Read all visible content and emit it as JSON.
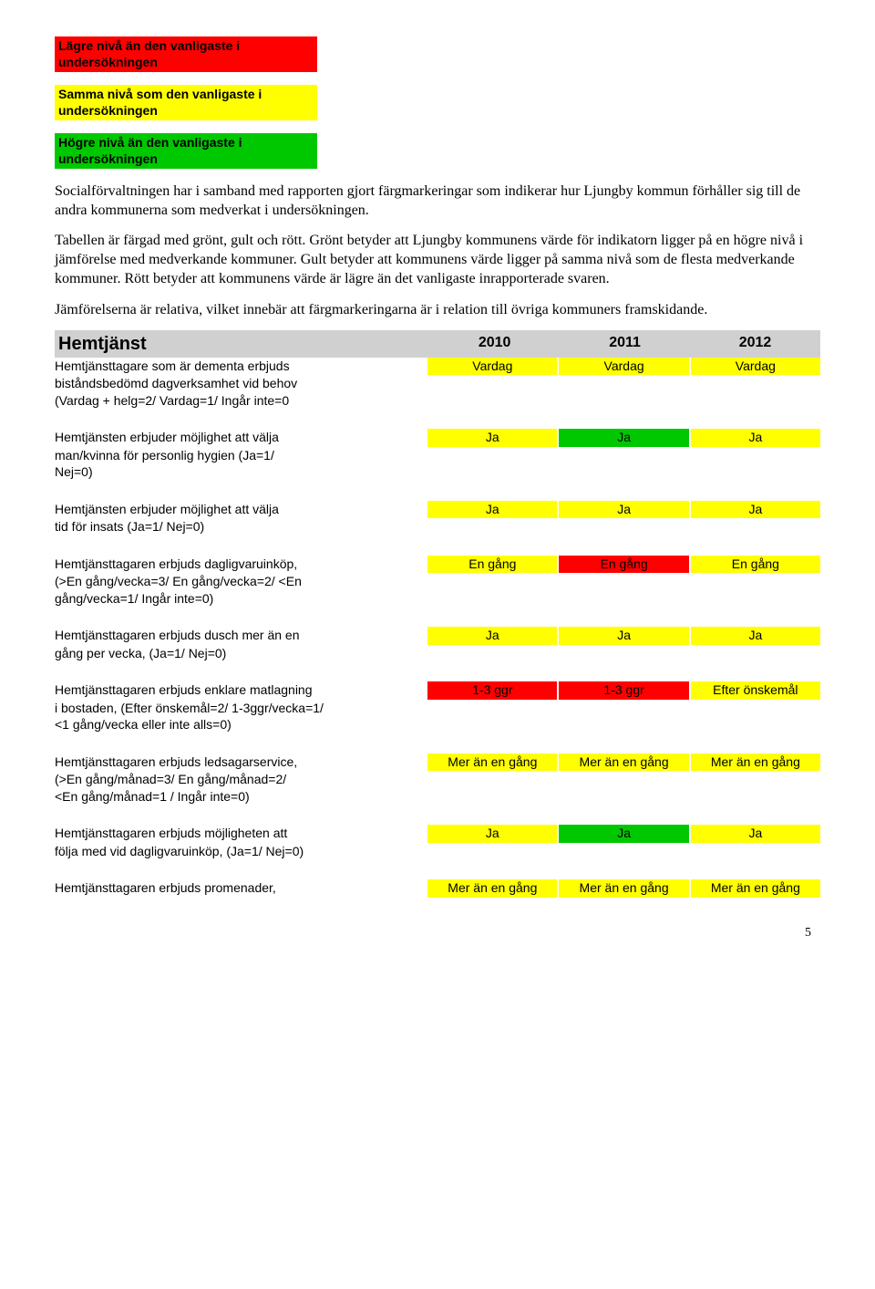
{
  "legend": {
    "low": "Lägre nivå än den vanligaste i undersökningen",
    "same": "Samma nivå som den vanligaste i undersökningen",
    "high": "Högre nivå än den vanligaste i undersökningen"
  },
  "paragraphs": {
    "p1": "Socialförvaltningen har i samband med rapporten gjort färgmarkeringar som indikerar hur Ljungby kommun förhåller sig till de andra kommunerna som medverkat i undersökningen.",
    "p2": "Tabellen är färgad med grönt, gult och rött. Grönt betyder att Ljungby kommunens värde för indikatorn ligger på en högre nivå i jämförelse med medverkande kommuner. Gult betyder att kommunens värde ligger på samma nivå som de flesta medverkande kommuner. Rött betyder att kommunens värde är lägre än det vanligaste inrapporterade svaren.",
    "p3": "Jämförelserna är relativa, vilket innebär att färgmarkeringarna är i relation till övriga kommuners framskidande."
  },
  "header": {
    "title": "Hemtjänst",
    "years": [
      "2010",
      "2011",
      "2012"
    ]
  },
  "rows": [
    {
      "label_lines": [
        "Hemtjänsttagare som är dementa erbjuds",
        "biståndsbedömd dagverksamhet vid behov",
        "(Vardag + helg=2/ Vardag=1/ Ingår inte=0"
      ],
      "values": [
        "Vardag",
        "Vardag",
        "Vardag"
      ],
      "colors": [
        "bg-yellow",
        "bg-yellow",
        "bg-yellow"
      ]
    },
    {
      "label_lines": [
        "Hemtjänsten erbjuder möjlighet att välja",
        "man/kvinna för personlig hygien (Ja=1/",
        "Nej=0)"
      ],
      "values": [
        "Ja",
        "Ja",
        "Ja"
      ],
      "colors": [
        "bg-yellow",
        "bg-green",
        "bg-yellow"
      ]
    },
    {
      "label_lines": [
        "Hemtjänsten erbjuder möjlighet att välja",
        "tid för insats (Ja=1/ Nej=0)"
      ],
      "values": [
        "Ja",
        "Ja",
        "Ja"
      ],
      "colors": [
        "bg-yellow",
        "bg-yellow",
        "bg-yellow"
      ]
    },
    {
      "label_lines": [
        "Hemtjänsttagaren erbjuds dagligvaruinköp,",
        "(>En gång/vecka=3/ En gång/vecka=2/ <En",
        "gång/vecka=1/ Ingår inte=0)"
      ],
      "values": [
        "En gång",
        "En gång",
        "En gång"
      ],
      "colors": [
        "bg-yellow",
        "bg-red",
        "bg-yellow"
      ]
    },
    {
      "label_lines": [
        "Hemtjänsttagaren erbjuds dusch mer än en",
        "gång per vecka, (Ja=1/ Nej=0)"
      ],
      "values": [
        "Ja",
        "Ja",
        "Ja"
      ],
      "colors": [
        "bg-yellow",
        "bg-yellow",
        "bg-yellow"
      ]
    },
    {
      "label_lines": [
        "Hemtjänsttagaren erbjuds enklare matlagning",
        "i bostaden, (Efter önskemål=2/ 1-3ggr/vecka=1/",
        "<1 gång/vecka eller inte alls=0)"
      ],
      "values": [
        "1-3 ggr",
        "1-3 ggr",
        "Efter önskemål"
      ],
      "colors": [
        "bg-red",
        "bg-red",
        "bg-yellow"
      ]
    },
    {
      "label_lines": [
        "Hemtjänsttagaren erbjuds ledsagarservice,",
        "(>En gång/månad=3/ En gång/månad=2/",
        "<En gång/månad=1 / Ingår inte=0)"
      ],
      "values": [
        "Mer än en gång",
        "Mer än en gång",
        "Mer än en gång"
      ],
      "colors": [
        "bg-yellow",
        "bg-yellow",
        "bg-yellow"
      ],
      "value_above": true
    },
    {
      "label_lines": [
        "Hemtjänsttagaren erbjuds möjligheten att",
        "följa med vid dagligvaruinköp, (Ja=1/ Nej=0)"
      ],
      "values": [
        "Ja",
        "Ja",
        "Ja"
      ],
      "colors": [
        "bg-yellow",
        "bg-green",
        "bg-yellow"
      ]
    },
    {
      "label_lines": [
        "Hemtjänsttagaren erbjuds promenader,"
      ],
      "values": [
        "Mer än en gång",
        "Mer än en gång",
        "Mer än en gång"
      ],
      "colors": [
        "bg-yellow",
        "bg-yellow",
        "bg-yellow"
      ],
      "value_above": true
    }
  ],
  "page_number": "5"
}
